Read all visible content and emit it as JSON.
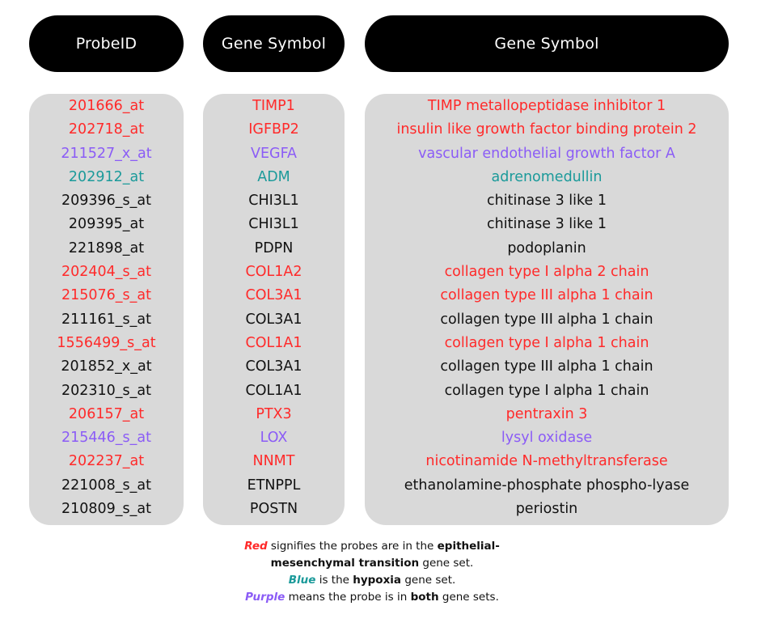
{
  "headers": {
    "probe": "ProbeID",
    "gene_symbol": "Gene Symbol",
    "gene_name": "Gene Symbol"
  },
  "colors": {
    "red": "#ff2a2a",
    "blue": "#1b9a9a",
    "purple": "#8b5cf6",
    "black": "#111111",
    "panel": "#d9d9d9",
    "header": "#000000"
  },
  "rows": [
    {
      "probe": "201666_at",
      "symbol": "TIMP1",
      "name": "TIMP metallopeptidase inhibitor 1",
      "color": "red"
    },
    {
      "probe": "202718_at",
      "symbol": "IGFBP2",
      "name": "insulin like growth factor binding protein 2",
      "color": "red"
    },
    {
      "probe": "211527_x_at",
      "symbol": "VEGFA",
      "name": "vascular endothelial growth factor A",
      "color": "purple"
    },
    {
      "probe": "202912_at",
      "symbol": "ADM",
      "name": "adrenomedullin",
      "color": "blue"
    },
    {
      "probe": "209396_s_at",
      "symbol": "CHI3L1",
      "name": "chitinase 3 like 1",
      "color": "black"
    },
    {
      "probe": "209395_at",
      "symbol": "CHI3L1",
      "name": "chitinase 3 like 1",
      "color": "black"
    },
    {
      "probe": "221898_at",
      "symbol": "PDPN",
      "name": "podoplanin",
      "color": "black"
    },
    {
      "probe": "202404_s_at",
      "symbol": "COL1A2",
      "name": "collagen type I alpha 2 chain",
      "color": "red"
    },
    {
      "probe": "215076_s_at",
      "symbol": "COL3A1",
      "name": "collagen type III alpha 1 chain",
      "color": "red"
    },
    {
      "probe": "211161_s_at",
      "symbol": "COL3A1",
      "name": "collagen type III alpha 1 chain",
      "color": "black"
    },
    {
      "probe": "1556499_s_at",
      "symbol": "COL1A1",
      "name": "collagen type I alpha 1 chain",
      "color": "red"
    },
    {
      "probe": "201852_x_at",
      "symbol": "COL3A1",
      "name": "collagen type III alpha 1 chain",
      "color": "black"
    },
    {
      "probe": "202310_s_at",
      "symbol": "COL1A1",
      "name": "collagen type I alpha 1 chain",
      "color": "black"
    },
    {
      "probe": "206157_at",
      "symbol": "PTX3",
      "name": "pentraxin 3",
      "color": "red"
    },
    {
      "probe": "215446_s_at",
      "symbol": "LOX",
      "name": "lysyl oxidase",
      "color": "purple"
    },
    {
      "probe": "202237_at",
      "symbol": "NNMT",
      "name": "nicotinamide N-methyltransferase",
      "color": "red"
    },
    {
      "probe": "221008_s_at",
      "symbol": "ETNPPL",
      "name": "ethanolamine-phosphate phospho-lyase",
      "color": "black"
    },
    {
      "probe": "210809_s_at",
      "symbol": "POSTN",
      "name": "periostin",
      "color": "black"
    }
  ],
  "legend": {
    "red_word": "Red",
    "red_text_1": " signifies the probes are in the ",
    "red_bold": "epithelial-mesenchymal transition",
    "red_text_2": " gene set.",
    "blue_word": "Blue",
    "blue_text_1": " is the ",
    "blue_bold": "hypoxia",
    "blue_text_2": " gene set.",
    "purple_word": "Purple",
    "purple_text_1": " means the probe is in ",
    "purple_bold": "both",
    "purple_text_2": " gene sets."
  }
}
